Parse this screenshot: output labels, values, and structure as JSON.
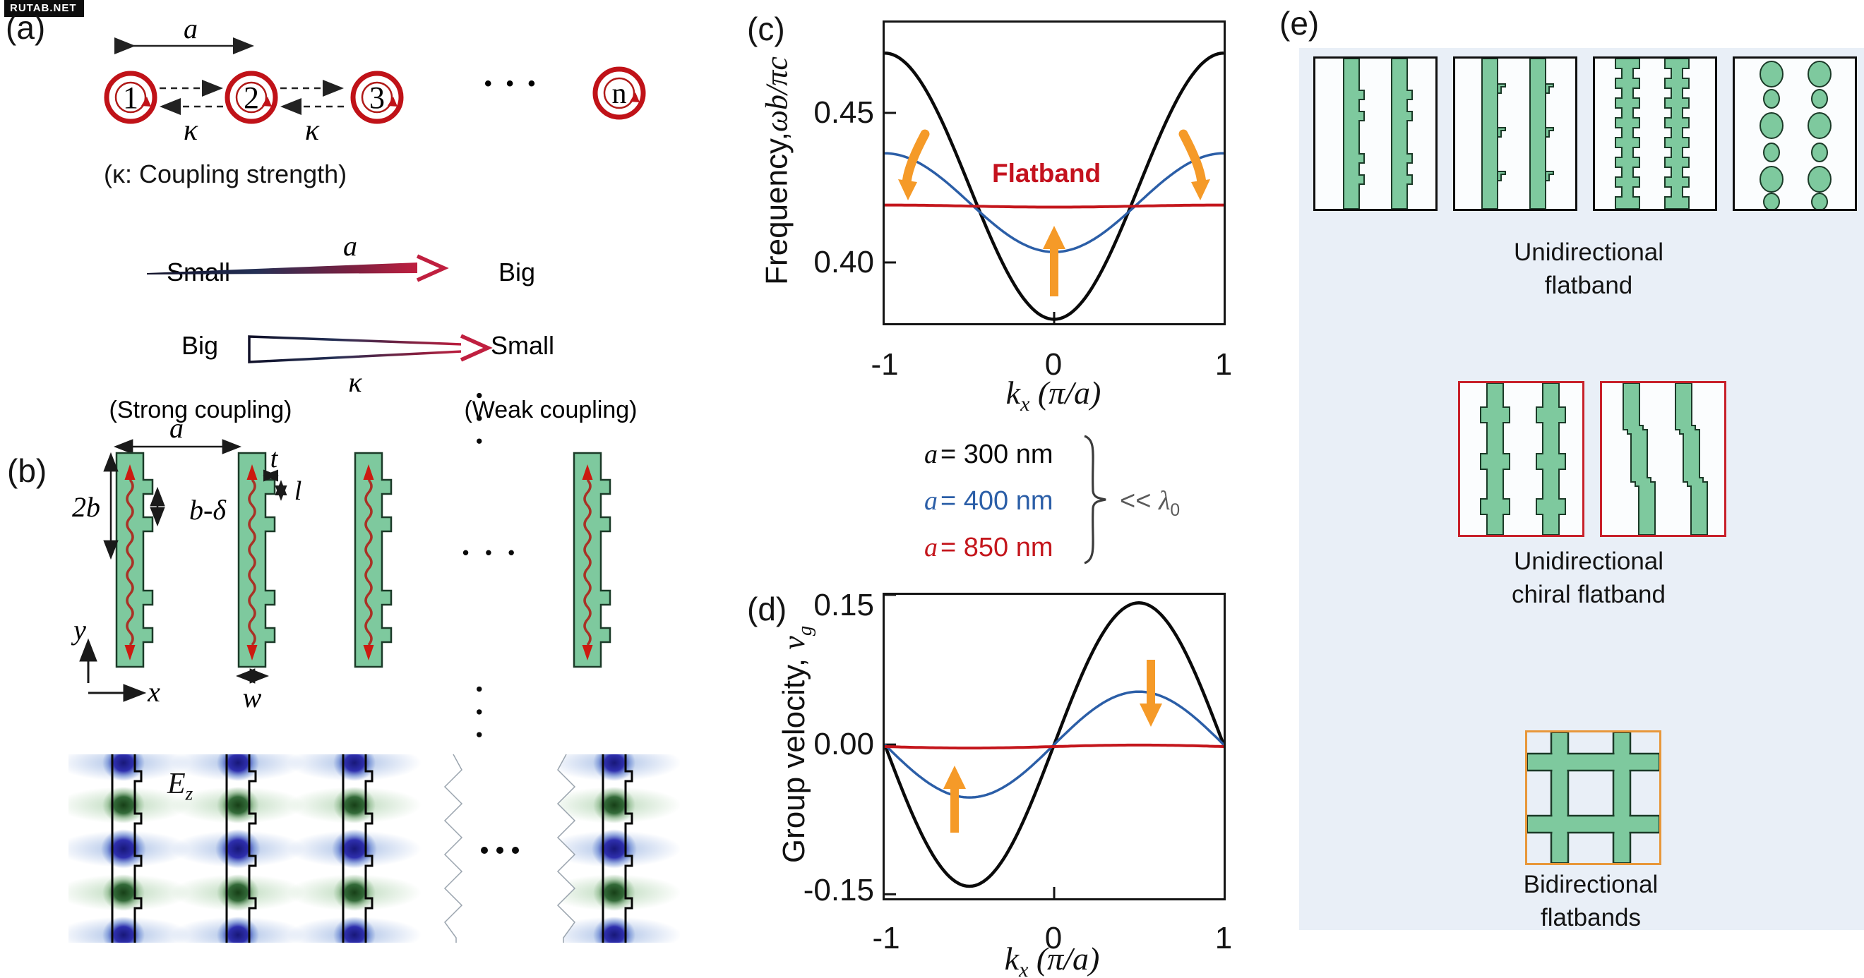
{
  "watermark": "RUTAB.NET",
  "colors": {
    "green_fill": "#7ec99e",
    "green_stroke": "#1b3a28",
    "ring_red": "#c01218",
    "wave_red": "#a93226",
    "curve_black": "#0a0a0a",
    "curve_blue": "#2b5ea7",
    "curve_red": "#c4161c",
    "accent_orange": "#f59a28",
    "panel_blue_bg": "#e9eff7",
    "red_box_border": "#c8202a",
    "orange_box_border": "#e8973a",
    "flatband_text": "#c4121e",
    "field_blue": "#1f1f9f",
    "field_green": "#1f5a2a"
  },
  "panel_a": {
    "tag": "(a)",
    "ring_labels": [
      "1",
      "2",
      "3"
    ],
    "ring_n_label": "n",
    "dots": "• • •",
    "spacing_label": "a",
    "kappa_labels": [
      "κ",
      "κ"
    ],
    "caption": "(κ: Coupling strength)",
    "mapping": {
      "row1": {
        "left": "Small",
        "arrow_label": "a",
        "right": "Big"
      },
      "row2": {
        "left": "Big",
        "arrow_label": "κ",
        "right": "Small"
      },
      "caption_left": "(Strong coupling)",
      "caption_right": "(Weak coupling)"
    }
  },
  "panel_b": {
    "tag": "(b)",
    "dim_labels": {
      "a": "a",
      "two_b": "2b",
      "b_minus_delta": "b-δ",
      "t": "t",
      "l": "l",
      "w": "w"
    },
    "axes": {
      "x": "x",
      "y": "y"
    },
    "dots_horizontal": "• • •",
    "dots_vertical": "• • •",
    "field_label": {
      "base": "E",
      "sub": "z"
    }
  },
  "panel_c": {
    "tag": "(c)",
    "ylabel": {
      "prefix": "Frequency,",
      "math": "ωb/πc"
    },
    "xlabel": {
      "base": "k",
      "sub": "x",
      "rest": " (π/a)"
    },
    "yticks": [
      "0.45",
      "0.40"
    ],
    "xticks": [
      "-1",
      "0",
      "1"
    ]
  },
  "legend": {
    "items": [
      {
        "var": "a",
        "rest": "= 300 nm",
        "color": "#0a0a0a"
      },
      {
        "var": "a",
        "rest": "= 400 nm",
        "color": "#2b5ea7"
      },
      {
        "var": "a",
        "rest": "= 850 nm",
        "color": "#c4161c"
      }
    ],
    "note": {
      "rel": "<< ",
      "symbol": "λ",
      "sub": "0"
    }
  },
  "panel_d": {
    "tag": "(d)",
    "ylabel": {
      "prefix": "Group velocity, ",
      "math": "v",
      "sub": "g"
    },
    "xlabel": {
      "base": "k",
      "sub": "x",
      "rest": " (π/a)"
    },
    "yticks": [
      "0.15",
      "0.00",
      "-0.15"
    ],
    "xticks": [
      "-1",
      "0",
      "1"
    ]
  },
  "panel_e": {
    "tag": "(e)",
    "captions": {
      "top": [
        "Unidirectional",
        "flatband"
      ],
      "middle": [
        "Unidirectional",
        "chiral flatband"
      ],
      "bottom": [
        "Bidirectional",
        "flatbands"
      ]
    }
  },
  "chart_data": [
    {
      "id": "c",
      "type": "line",
      "title": "",
      "xlabel": "k_x (π/a)",
      "ylabel": "Frequency, ωb/πc",
      "xlim": [
        -1,
        1
      ],
      "ylim": [
        0.3797,
        0.4802
      ],
      "xticks": [
        -1,
        0,
        1
      ],
      "yticks": [
        0.4,
        0.45
      ],
      "grid": false,
      "band_model": "ω(k) = center + (edge − center)·(1 − cos(πk))/2",
      "annotation_label": "Flatband",
      "series": [
        {
          "name": "a = 300 nm",
          "color": "#0a0a0a",
          "width": 4.5,
          "value_at_edge": 0.47,
          "value_at_center": 0.381
        },
        {
          "name": "a = 400 nm",
          "color": "#2b5ea7",
          "width": 3.5,
          "value_at_edge": 0.4365,
          "value_at_center": 0.4035
        },
        {
          "name": "a = 850 nm (flatband)",
          "color": "#c4161c",
          "width": 4,
          "value_at_edge": 0.4192,
          "value_at_center": 0.4185
        }
      ]
    },
    {
      "id": "d",
      "type": "line",
      "title": "",
      "xlabel": "k_x (π/a)",
      "ylabel": "Group velocity, v_g",
      "xlim": [
        -1,
        1
      ],
      "ylim": [
        -0.154,
        0.15
      ],
      "xticks": [
        -1,
        0,
        1
      ],
      "yticks": [
        -0.15,
        0.0,
        0.15
      ],
      "grid": false,
      "model": "v_g(k) = A·sin(πk) + offset",
      "series": [
        {
          "name": "a = 300 nm",
          "color": "#0a0a0a",
          "width": 4.5,
          "amplitude": 0.142,
          "offset": 0.0
        },
        {
          "name": "a = 400 nm",
          "color": "#2b5ea7",
          "width": 3.5,
          "amplitude": 0.053,
          "offset": 0.0
        },
        {
          "name": "a = 850 nm",
          "color": "#c4161c",
          "width": 4,
          "amplitude": 0.0015,
          "offset": -0.002
        }
      ]
    }
  ]
}
